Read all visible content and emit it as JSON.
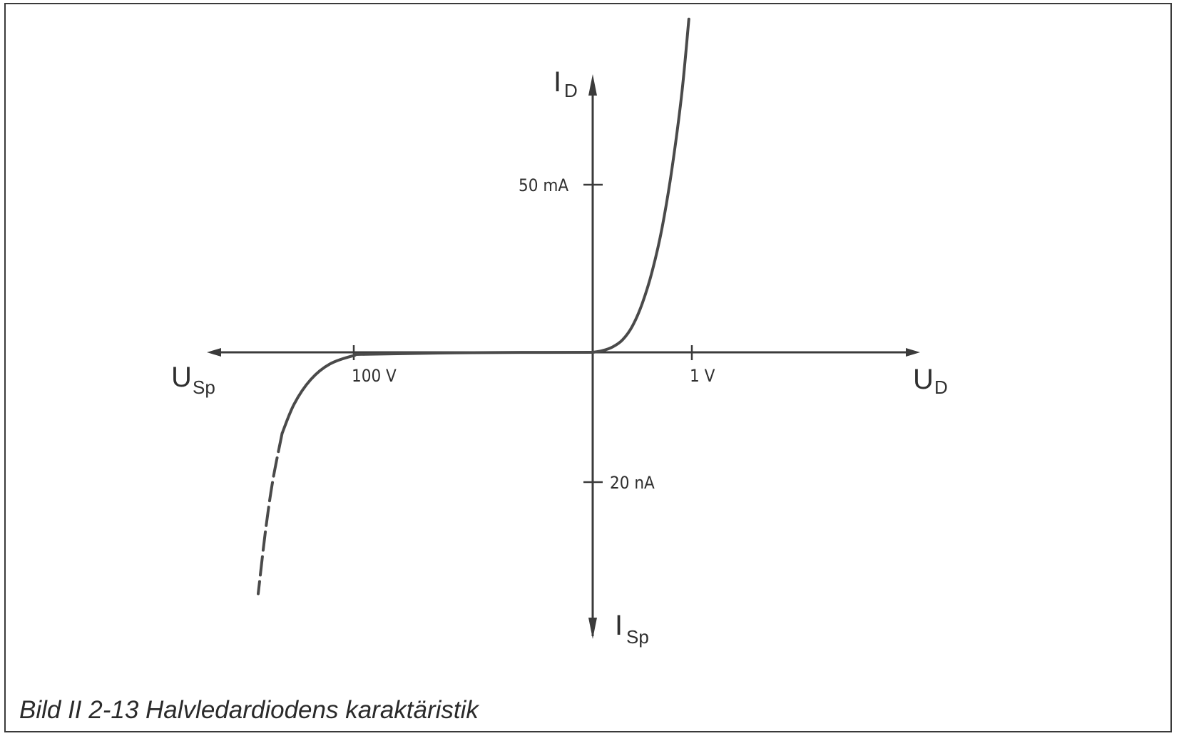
{
  "caption": "Bild II 2-13  Halvledardiodens karaktäristik",
  "chart_data": {
    "type": "line",
    "title": "Bild II 2-13  Halvledardiodens karaktäristik",
    "axes": {
      "x_positive": {
        "name": "U",
        "subscript": "D"
      },
      "x_negative": {
        "name": "U",
        "subscript": "Sp"
      },
      "y_positive": {
        "name": "I",
        "subscript": "D"
      },
      "y_negative": {
        "name": "I",
        "subscript": "Sp"
      }
    },
    "tick_labels": {
      "x_positive": "1 V",
      "x_negative": "100 V",
      "y_positive": "50 mA",
      "y_negative": "20 nA"
    },
    "scale": "piecewise (forward: 1 V / 50 mA per tick; reverse: 100 V / 20 nA per tick)",
    "series": [
      {
        "region": "forward",
        "points": [
          {
            "x": 0.0,
            "y": 0.0
          },
          {
            "x": 0.1,
            "y": 0.5
          },
          {
            "x": 0.2,
            "y": 1.6
          },
          {
            "x": 0.3,
            "y": 3.7
          },
          {
            "x": 0.4,
            "y": 7.8
          },
          {
            "x": 0.5,
            "y": 14.6
          },
          {
            "x": 0.6,
            "y": 24.2
          },
          {
            "x": 0.7,
            "y": 37.2
          },
          {
            "x": 0.8,
            "y": 54.9
          },
          {
            "x": 0.9,
            "y": 77.6
          },
          {
            "x": 0.97,
            "y": 99.4
          }
        ]
      },
      {
        "region": "reverse",
        "points": [
          {
            "x": 0,
            "y": 0.0
          },
          {
            "x": -50,
            "y": -0.05
          },
          {
            "x": -95,
            "y": -0.3
          },
          {
            "x": -100,
            "y": -0.5
          },
          {
            "x": -110,
            "y": -1.8
          },
          {
            "x": -118,
            "y": -4.2
          },
          {
            "x": -125,
            "y": -8.0
          },
          {
            "x": -130,
            "y": -12.5
          }
        ]
      },
      {
        "region": "reverse-breakdown (dashed)",
        "points": [
          {
            "x": -130,
            "y": -12.5
          },
          {
            "x": -134,
            "y": -20.0
          },
          {
            "x": -137,
            "y": -27.7
          },
          {
            "x": -140,
            "y": -37.2
          }
        ]
      }
    ]
  }
}
